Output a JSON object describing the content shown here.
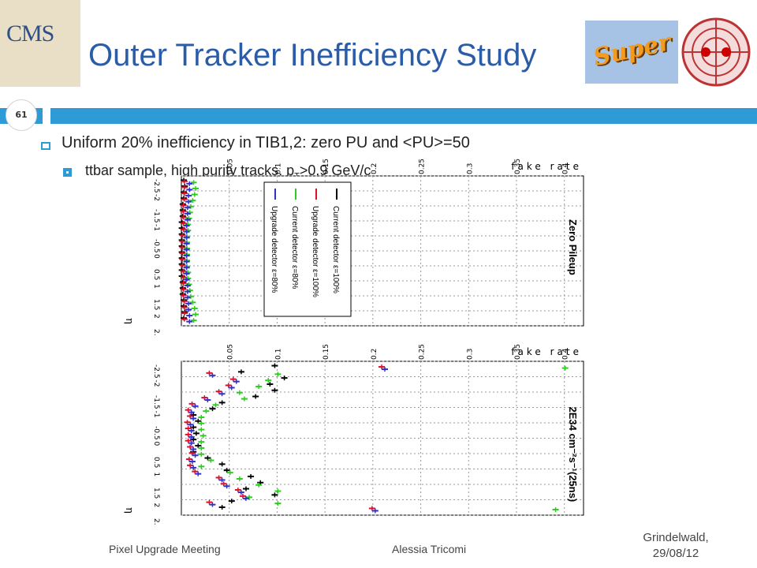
{
  "header": {
    "title": "Outer Tracker Inefficiency Study",
    "slide_number": "61",
    "logo_text": "CMS",
    "super_text": "Super"
  },
  "bullets": {
    "level1": "Uniform 20% inefficiency in TIB1,2: zero PU and <PU>=50",
    "level2_main": "ttbar sample, high purity tracks, p",
    "level2_sub": "T",
    "level2_tail": ">0.9 GeV/c"
  },
  "footer": {
    "left": "Pixel Upgrade Meeting",
    "center": "Alessia Tricomi",
    "right_line1": "Grindelwald,",
    "right_line2": "29/08/12"
  },
  "colors": {
    "accent": "#2e9ad6",
    "title": "#2a5ca8",
    "series_black": "#000000",
    "series_red": "#e0102a",
    "series_green": "#2ecc20",
    "series_blue": "#3030d0"
  },
  "chart_data": [
    {
      "type": "scatter",
      "orientation": "rotated-90",
      "title": "Zero Pileup",
      "xlabel": "η",
      "ylabel": "fake rate",
      "x_ticks": [
        "-2.5",
        "-2",
        "-1.5",
        "-1",
        "-0.5",
        "0",
        "0.5",
        "1",
        "1.5",
        "2",
        "2.5"
      ],
      "y_ticks": [
        "0.05",
        "0.1",
        "0.15",
        "0.2",
        "0.25",
        "0.3",
        "0.35",
        "0.4"
      ],
      "xlim": [
        -2.5,
        2.5
      ],
      "ylim": [
        0,
        0.42
      ],
      "legend": [
        "Current detector ε=100%",
        "Upgrade detector ε=100%",
        "Current detector ε=80%",
        "Upgrade detector ε=80%"
      ],
      "legend_placement": "center",
      "grid": true,
      "x": [
        -2.3,
        -2.1,
        -1.9,
        -1.7,
        -1.5,
        -1.3,
        -1.1,
        -0.9,
        -0.7,
        -0.5,
        -0.3,
        -0.1,
        0.1,
        0.3,
        0.5,
        0.7,
        0.9,
        1.1,
        1.3,
        1.5,
        1.7,
        1.9,
        2.1,
        2.3
      ],
      "series": [
        {
          "name": "Current detector ε=100%",
          "values": [
            0.005,
            0.006,
            0.005,
            0.005,
            0.004,
            0.004,
            0.004,
            0.003,
            0.003,
            0.003,
            0.003,
            0.003,
            0.003,
            0.003,
            0.003,
            0.003,
            0.003,
            0.004,
            0.004,
            0.004,
            0.005,
            0.005,
            0.006,
            0.005
          ]
        },
        {
          "name": "Upgrade detector ε=100%",
          "values": [
            0.004,
            0.004,
            0.004,
            0.004,
            0.003,
            0.003,
            0.003,
            0.003,
            0.003,
            0.002,
            0.002,
            0.002,
            0.002,
            0.002,
            0.002,
            0.003,
            0.003,
            0.003,
            0.003,
            0.003,
            0.004,
            0.004,
            0.004,
            0.004
          ]
        },
        {
          "name": "Current detector ε=80%",
          "values": [
            0.012,
            0.014,
            0.013,
            0.011,
            0.009,
            0.008,
            0.007,
            0.006,
            0.006,
            0.005,
            0.005,
            0.005,
            0.005,
            0.005,
            0.005,
            0.006,
            0.006,
            0.007,
            0.008,
            0.009,
            0.011,
            0.013,
            0.014,
            0.012
          ]
        },
        {
          "name": "Upgrade detector ε=80%",
          "values": [
            0.006,
            0.006,
            0.005,
            0.005,
            0.004,
            0.004,
            0.004,
            0.003,
            0.003,
            0.003,
            0.003,
            0.003,
            0.003,
            0.003,
            0.003,
            0.003,
            0.003,
            0.004,
            0.004,
            0.004,
            0.005,
            0.005,
            0.006,
            0.006
          ]
        }
      ]
    },
    {
      "type": "scatter",
      "orientation": "rotated-90",
      "title": "2E34 cm⁻²s⁻¹(25ns)",
      "xlabel": "η",
      "ylabel": "fake rate",
      "x_ticks": [
        "-2.5",
        "-2",
        "-1.5",
        "-1",
        "-0.5",
        "0",
        "0.5",
        "1",
        "1.5",
        "2",
        "2.5"
      ],
      "y_ticks": [
        "0.05",
        "0.1",
        "0.15",
        "0.2",
        "0.25",
        "0.3",
        "0.35",
        "0.4"
      ],
      "xlim": [
        -2.5,
        2.5
      ],
      "ylim": [
        0,
        0.42
      ],
      "grid": true,
      "x": [
        -2.3,
        -2.1,
        -1.9,
        -1.7,
        -1.5,
        -1.3,
        -1.1,
        -0.9,
        -0.7,
        -0.5,
        -0.3,
        -0.1,
        0.1,
        0.3,
        0.5,
        0.7,
        0.9,
        1.1,
        1.3,
        1.5,
        1.7,
        1.9,
        2.1,
        2.3
      ],
      "series": [
        {
          "name": "Current detector ε=100%",
          "values": [
            0.1,
            0.065,
            0.11,
            0.095,
            0.1,
            0.08,
            0.045,
            0.035,
            0.015,
            0.02,
            0.015,
            0.018,
            0.015,
            0.02,
            0.015,
            0.03,
            0.045,
            0.05,
            0.075,
            0.085,
            0.07,
            0.1,
            0.055,
            0.045
          ]
        },
        {
          "name": "Upgrade detector ε=100%",
          "values": [
            0.21,
            0.03,
            0.055,
            0.05,
            0.04,
            0.025,
            0.012,
            0.008,
            0.01,
            0.007,
            0.008,
            0.008,
            0.008,
            0.01,
            0.012,
            0.009,
            0.01,
            0.015,
            0.04,
            0.045,
            0.06,
            0.065,
            0.03,
            0.2
          ]
        },
        {
          "name": "Current detector ε=80%",
          "values": [
            0.4,
            0.1,
            0.09,
            0.08,
            0.06,
            0.065,
            0.035,
            0.025,
            0.02,
            0.02,
            0.02,
            0.022,
            0.02,
            0.02,
            0.02,
            0.03,
            0.02,
            0.05,
            0.06,
            0.08,
            0.1,
            0.07,
            0.1,
            0.39
          ]
        },
        {
          "name": "Upgrade detector ε=80%",
          "values": [
            0.21,
            0.03,
            0.055,
            0.05,
            0.04,
            0.025,
            0.012,
            0.008,
            0.01,
            0.007,
            0.008,
            0.008,
            0.008,
            0.01,
            0.012,
            0.009,
            0.01,
            0.015,
            0.04,
            0.045,
            0.06,
            0.065,
            0.03,
            0.2
          ]
        }
      ]
    }
  ]
}
